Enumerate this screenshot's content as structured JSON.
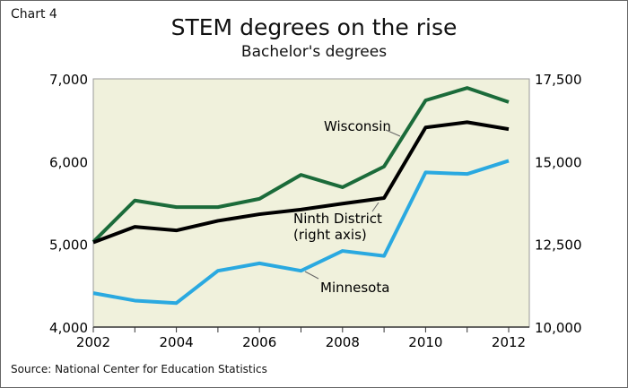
{
  "chart_label": "Chart 4",
  "source": "Source: National Center for Education Statistics",
  "colors": {
    "wisconsin": "#1b6b3a",
    "ninth_district": "#000000",
    "minnesota": "#2aa9e0",
    "plot_bg": "#f0f1dc"
  },
  "chart_data": {
    "type": "line",
    "title": "STEM degrees on the rise",
    "subtitle": "Bachelor's degrees",
    "x": [
      2002,
      2003,
      2004,
      2005,
      2006,
      2007,
      2008,
      2009,
      2010,
      2011,
      2012
    ],
    "x_tick_labels": [
      "2002",
      "2004",
      "2006",
      "2008",
      "2010",
      "2012"
    ],
    "y_left": {
      "lim": [
        4000,
        7000
      ],
      "tick_labels": [
        "7,000",
        "6,000",
        "5,000",
        "4,000"
      ]
    },
    "y_right": {
      "lim": [
        10000,
        17500
      ],
      "tick_labels": [
        "17,500",
        "15,000",
        "12,500",
        "10,000"
      ]
    },
    "grid": false,
    "series": [
      {
        "name": "Wisconsin",
        "axis": "left",
        "values": [
          5030,
          5530,
          5450,
          5450,
          5550,
          5840,
          5690,
          5940,
          6740,
          6890,
          6720
        ]
      },
      {
        "name": "Ninth District",
        "label2": "(right axis)",
        "axis": "right",
        "values": [
          12560,
          13030,
          12920,
          13210,
          13410,
          13550,
          13730,
          13900,
          16030,
          16190,
          15980
        ]
      },
      {
        "name": "Minnesota",
        "axis": "left",
        "values": [
          4410,
          4320,
          4290,
          4680,
          4770,
          4680,
          4920,
          4860,
          5870,
          5850,
          6010
        ]
      }
    ]
  }
}
